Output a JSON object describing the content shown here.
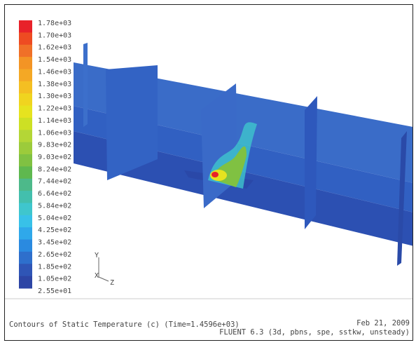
{
  "colorbar": {
    "labels": [
      "1.78e+03",
      "1.70e+03",
      "1.62e+03",
      "1.54e+03",
      "1.46e+03",
      "1.38e+03",
      "1.30e+03",
      "1.22e+03",
      "1.14e+03",
      "1.06e+03",
      "9.83e+02",
      "9.03e+02",
      "8.24e+02",
      "7.44e+02",
      "6.64e+02",
      "5.84e+02",
      "5.04e+02",
      "4.25e+02",
      "3.45e+02",
      "2.65e+02",
      "1.85e+02",
      "1.05e+02",
      "2.55e+01"
    ],
    "colors": [
      "#e8222a",
      "#ee4b22",
      "#f07028",
      "#f39425",
      "#f4a825",
      "#f4bf22",
      "#f0d41f",
      "#e6e31f",
      "#cde024",
      "#b4d636",
      "#9ccb3b",
      "#80c142",
      "#5fb84f",
      "#4db98a",
      "#43bfad",
      "#3fc6cd",
      "#38c1e8",
      "#2fa8ea",
      "#2a8ae0",
      "#2e6fcc",
      "#2f55b6",
      "#2d45a5"
    ]
  },
  "axes": {
    "y": "Y",
    "x": "X",
    "z": "Z"
  },
  "footer": {
    "title": "Contours of Static Temperature (c) (Time=1.4596e+03)",
    "date": "Feb 21, 2009",
    "solver": "FLUENT 6.3 (3d, pbns, spe, sstkw, unsteady)"
  }
}
